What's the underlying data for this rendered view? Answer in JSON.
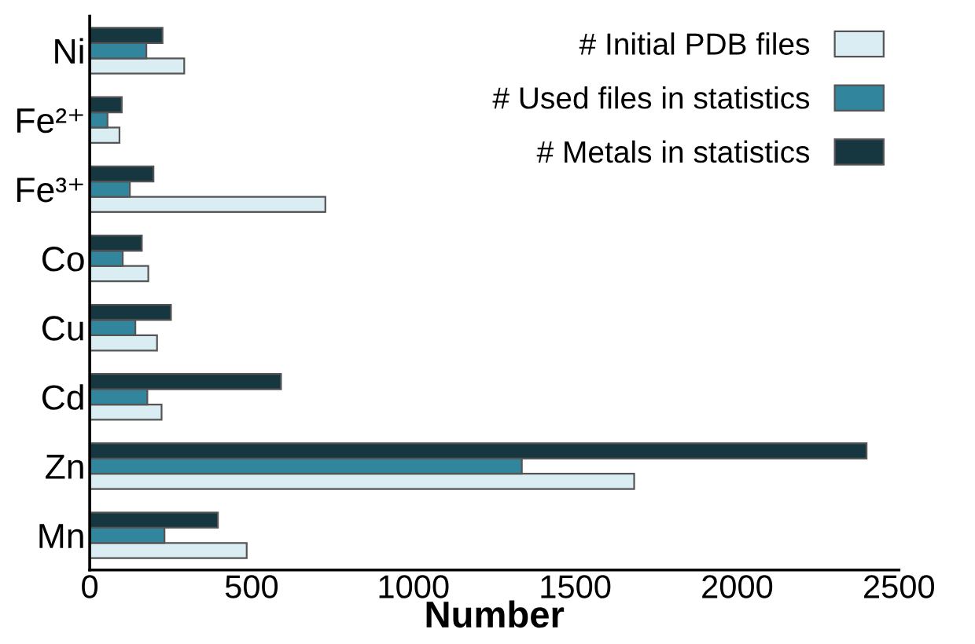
{
  "chart_data": {
    "type": "bar",
    "orientation": "horizontal",
    "xlabel": "Number",
    "categories": [
      "Ni",
      "Fe²⁺",
      "Fe³⁺",
      "Co",
      "Cu",
      "Cd",
      "Zn",
      "Mn"
    ],
    "series": [
      {
        "name": "# Initial PDB files",
        "color": "#daedf3",
        "values": [
          292,
          92,
          728,
          181,
          208,
          222,
          1682,
          485
        ]
      },
      {
        "name": "# Used files in statistics",
        "color": "#31859c",
        "values": [
          175,
          55,
          124,
          102,
          141,
          178,
          1335,
          231
        ]
      },
      {
        "name": "# Metals in statistics",
        "color": "#163640",
        "values": [
          225,
          99,
          197,
          161,
          251,
          591,
          2400,
          396
        ]
      }
    ],
    "xlim": [
      0,
      2500
    ],
    "xticks": [
      0,
      500,
      1000,
      1500,
      2000,
      2500
    ],
    "grid": false,
    "legend": "top right"
  }
}
